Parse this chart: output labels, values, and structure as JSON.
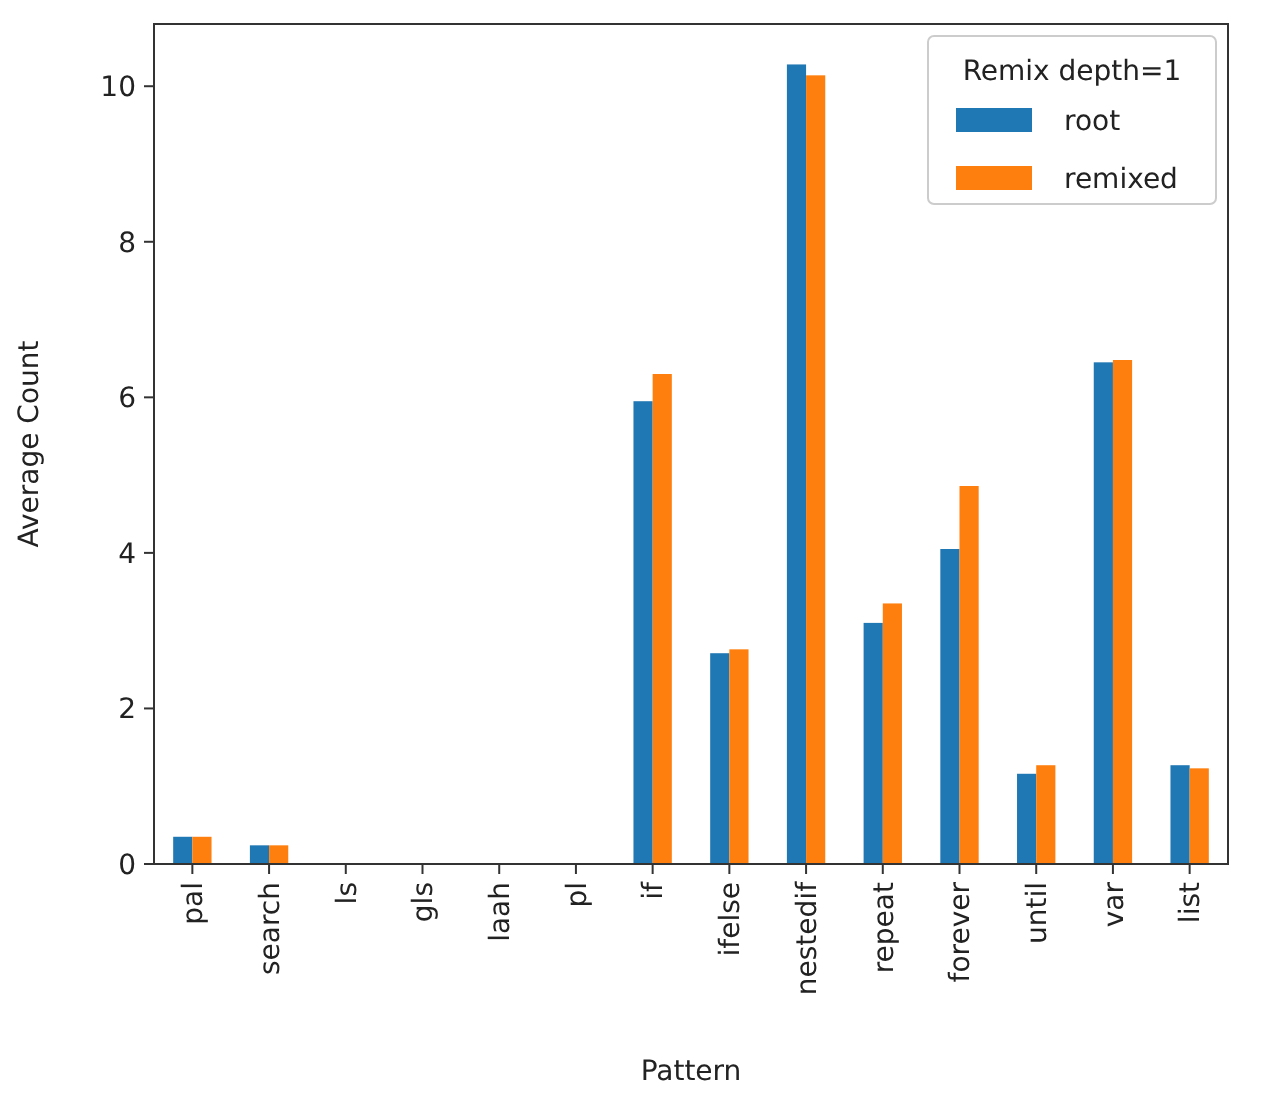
{
  "chart_data": {
    "type": "bar",
    "xlabel": "Pattern",
    "ylabel": "Average Count",
    "legend_title": "Remix depth=1",
    "legend": "top right",
    "categories": [
      "pal",
      "search",
      "ls",
      "gls",
      "laah",
      "pl",
      "if",
      "ifelse",
      "nestedif",
      "repeat",
      "forever",
      "until",
      "var",
      "list"
    ],
    "series": [
      {
        "name": "root",
        "color": "#1f77b4",
        "values": [
          0.35,
          0.24,
          0,
          0,
          0,
          0,
          5.95,
          2.71,
          10.28,
          3.1,
          4.05,
          1.16,
          6.45,
          1.27
        ]
      },
      {
        "name": "remixed",
        "color": "#ff7f0e",
        "values": [
          0.35,
          0.24,
          0,
          0,
          0,
          0,
          6.3,
          2.76,
          10.14,
          3.35,
          4.86,
          1.27,
          6.48,
          1.23
        ]
      }
    ],
    "ylim": [
      0,
      10.8
    ],
    "yticks": [
      0,
      2,
      4,
      6,
      8,
      10
    ]
  }
}
